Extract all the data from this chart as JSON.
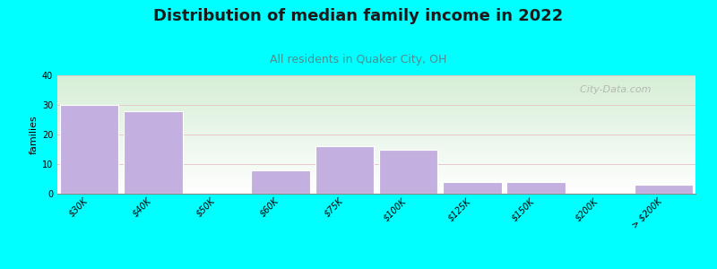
{
  "title": "Distribution of median family income in 2022",
  "subtitle": "All residents in Quaker City, OH",
  "ylabel": "families",
  "categories": [
    "$30K",
    "$40K",
    "$50K",
    "$60K",
    "$75K",
    "$100K",
    "$125K",
    "$150K",
    "$200K",
    "> $200K"
  ],
  "values": [
    30,
    28,
    0,
    8,
    16,
    15,
    4,
    4,
    0,
    3
  ],
  "bar_color": "#C4B0E0",
  "ylim": [
    0,
    40
  ],
  "yticks": [
    0,
    10,
    20,
    30,
    40
  ],
  "background_color": "#00FFFF",
  "plot_bg_top": "#d6eed6",
  "plot_bg_bottom": "#ffffff",
  "title_fontsize": 13,
  "subtitle_fontsize": 9,
  "subtitle_color": "#4a9090",
  "ylabel_fontsize": 8,
  "tick_fontsize": 7,
  "watermark_text": "  City-Data.com"
}
